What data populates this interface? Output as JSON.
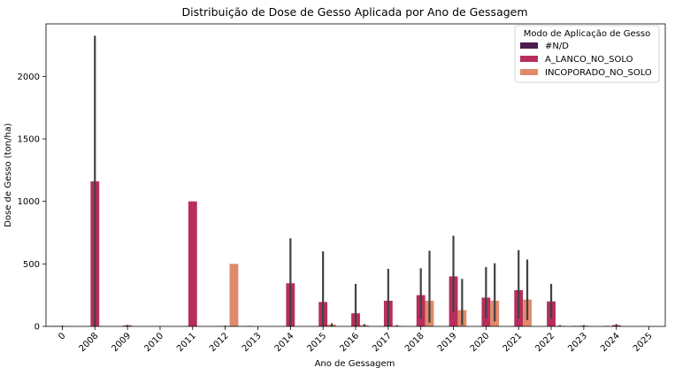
{
  "chart_data": {
    "type": "bar",
    "title": "Distribuição de Dose de Gesso Aplicada por Ano de Gessagem",
    "xlabel": "Ano de Gessagem",
    "ylabel": "Dose de Gesso (ton/ha)",
    "ylim": [
      0,
      2420
    ],
    "yticks": [
      0,
      500,
      1000,
      1500,
      2000
    ],
    "categories": [
      "0",
      "2008",
      "2009",
      "2010",
      "2011",
      "2012",
      "2013",
      "2014",
      "2015",
      "2016",
      "2017",
      "2018",
      "2019",
      "2020",
      "2021",
      "2022",
      "2023",
      "2024",
      "2025"
    ],
    "legend": {
      "title": "Modo de Aplicação de Gesso",
      "placement": "upper-right"
    },
    "grid": false,
    "series": [
      {
        "name": "#N/D",
        "color": "#4a1d4f",
        "values": [
          2,
          0,
          0,
          0,
          0,
          0,
          2,
          0,
          0,
          0,
          0,
          0,
          0,
          0,
          0,
          0,
          2,
          2,
          0
        ],
        "err": [
          [
            0,
            4
          ],
          null,
          null,
          null,
          null,
          null,
          [
            0,
            4
          ],
          null,
          null,
          null,
          null,
          null,
          null,
          null,
          null,
          null,
          [
            0,
            4
          ],
          [
            0,
            4
          ],
          null
        ]
      },
      {
        "name": "A_LANCO_NO_SOLO",
        "color": "#b82e5a",
        "values": [
          3,
          1160,
          8,
          0,
          1000,
          3,
          0,
          345,
          195,
          105,
          205,
          250,
          400,
          230,
          290,
          200,
          5,
          10,
          0
        ],
        "err": [
          [
            0,
            6
          ],
          [
            0,
            2325
          ],
          [
            0,
            12
          ],
          null,
          null,
          [
            0,
            6
          ],
          null,
          [
            0,
            705
          ],
          [
            0,
            600
          ],
          [
            0,
            340
          ],
          [
            0,
            460
          ],
          [
            65,
            465
          ],
          [
            110,
            725
          ],
          [
            65,
            475
          ],
          [
            65,
            610
          ],
          [
            65,
            340
          ],
          [
            0,
            10
          ],
          [
            0,
            18
          ],
          null
        ]
      },
      {
        "name": "INCOPORADO_NO_SOLO",
        "color": "#e08a6a",
        "values": [
          0,
          0,
          0,
          0,
          0,
          500,
          0,
          0,
          15,
          10,
          5,
          205,
          130,
          205,
          215,
          5,
          0,
          0,
          0
        ],
        "err": [
          null,
          null,
          null,
          null,
          null,
          null,
          null,
          null,
          [
            0,
            25
          ],
          [
            0,
            18
          ],
          [
            0,
            10
          ],
          [
            30,
            605
          ],
          [
            10,
            380
          ],
          [
            40,
            505
          ],
          [
            50,
            535
          ],
          [
            0,
            10
          ],
          null,
          null,
          null
        ]
      }
    ]
  }
}
